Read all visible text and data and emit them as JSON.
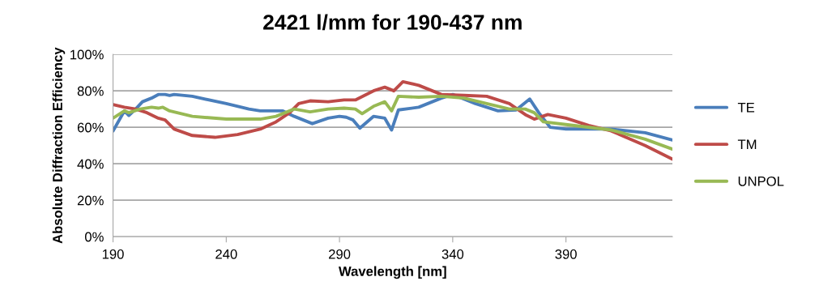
{
  "chart_data": {
    "type": "line",
    "title": "2421 l/mm for 190-437 nm",
    "xlabel": "Wavelength [nm]",
    "ylabel": "Absolute Diffraction Efficiency",
    "xlim": [
      190,
      437
    ],
    "xticks": [
      190,
      240,
      290,
      340,
      390
    ],
    "ylim": [
      0,
      100
    ],
    "yticks": [
      {
        "value": 0,
        "label": "0%"
      },
      {
        "value": 20,
        "label": "20%"
      },
      {
        "value": 40,
        "label": "40%"
      },
      {
        "value": 60,
        "label": "60%"
      },
      {
        "value": 80,
        "label": "80%"
      },
      {
        "value": 100,
        "label": "100%"
      }
    ],
    "grid": "y",
    "legend": "right",
    "marker": "none",
    "line_style": "solid",
    "series": [
      {
        "name": "TE",
        "color": "#4a7ebb",
        "x": [
          190,
          195,
          197,
          200,
          203,
          207,
          210,
          213,
          215,
          217,
          225,
          240,
          250,
          255,
          265,
          270,
          278,
          285,
          290,
          293,
          296,
          299,
          305,
          310,
          313,
          316,
          325,
          335,
          340,
          350,
          360,
          368,
          374,
          378,
          383,
          390,
          410,
          425,
          437
        ],
        "values": [
          58,
          69,
          66.5,
          70,
          74,
          76,
          78,
          78,
          77.5,
          78,
          77,
          73,
          70,
          69,
          69,
          66,
          62,
          65,
          66,
          65.5,
          64,
          59.5,
          66,
          65,
          58.5,
          69.5,
          71,
          76,
          78,
          73,
          69,
          69.5,
          75.5,
          68,
          60,
          59,
          59,
          57,
          53
        ]
      },
      {
        "name": "TM",
        "color": "#be4b48",
        "x": [
          190,
          195,
          200,
          205,
          210,
          213,
          217,
          225,
          235,
          245,
          255,
          262,
          268,
          272,
          277,
          285,
          292,
          297,
          305,
          310,
          314,
          318,
          325,
          335,
          345,
          355,
          365,
          372,
          376,
          382,
          390,
          400,
          410,
          425,
          437
        ],
        "values": [
          72.5,
          71,
          70,
          68,
          65,
          64,
          59,
          55.5,
          54.5,
          56,
          59,
          63,
          68,
          73,
          74.5,
          74,
          75,
          75,
          80,
          82,
          80,
          85,
          83,
          78,
          77.5,
          77,
          73,
          67,
          64.5,
          67,
          65,
          61,
          58,
          50,
          42.5
        ]
      },
      {
        "name": "UNPOL",
        "color": "#98b954",
        "x": [
          190,
          195,
          197,
          202,
          207,
          210,
          212,
          215,
          225,
          240,
          255,
          262,
          270,
          277,
          285,
          292,
          297,
          300,
          305,
          310,
          313,
          316,
          325,
          335,
          345,
          355,
          365,
          372,
          376,
          380,
          390,
          410,
          425,
          437
        ],
        "values": [
          65,
          69,
          68,
          70,
          71,
          70.5,
          71,
          69,
          66,
          64.5,
          64.5,
          66,
          70,
          68.5,
          70,
          70.5,
          70,
          67.5,
          71.5,
          74,
          69,
          77,
          76.5,
          77,
          76,
          73,
          70,
          70,
          68,
          63,
          61.5,
          58.5,
          53.5,
          48
        ]
      }
    ]
  }
}
